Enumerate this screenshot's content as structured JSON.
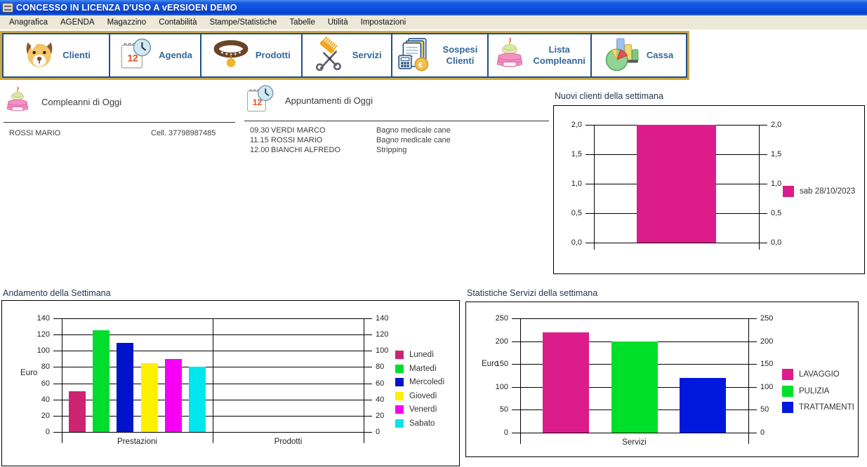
{
  "window": {
    "title": "CONCESSO IN LICENZA D'USO A vERSIOEN DEMO"
  },
  "menu": {
    "items": [
      "Anagrafica",
      "AGENDA",
      "Magazzino",
      "Contabilità",
      "Stampe/Statistiche",
      "Tabelle",
      "Utilità",
      "Impostazioni"
    ]
  },
  "toolbar": {
    "buttons": [
      {
        "label": "Clienti",
        "icon": "dog-icon"
      },
      {
        "label": "Agenda",
        "icon": "calendar-clock-icon"
      },
      {
        "label": "Prodotti",
        "icon": "dog-collar-icon"
      },
      {
        "label": "Servizi",
        "icon": "comb-scissors-icon"
      },
      {
        "label": "Sospesi Clienti",
        "icon": "documents-calculator-euro-icon"
      },
      {
        "label": "Lista Compleanni",
        "icon": "birthday-cake-icon"
      },
      {
        "label": "Cassa",
        "icon": "pie-chart-icon"
      }
    ]
  },
  "birthdays": {
    "title": "Compleanni di Oggi",
    "rows": [
      {
        "name": "ROSSI MARIO",
        "phone": "Cell. 37798987485"
      }
    ]
  },
  "appointments": {
    "title": "Appuntamenti di Oggi",
    "rows": [
      {
        "time": "09.30",
        "name": "VERDI MARCO",
        "service": "Bagno medicale cane"
      },
      {
        "time": "11.15",
        "name": "ROSSI MARIO",
        "service": "Bagno medicale cane"
      },
      {
        "time": "12.00",
        "name": "BIANCHI ALFREDO",
        "service": "Stripping"
      }
    ]
  },
  "chart_data": [
    {
      "type": "bar",
      "title": "Nuovi clienti della settimana",
      "ylabel": "",
      "xlabel": "",
      "ylim": [
        0,
        2.0
      ],
      "yticks": [
        0.0,
        0.5,
        1.0,
        1.5,
        2.0
      ],
      "ytick_labels": [
        "0,0",
        "0,5",
        "1,0",
        "1,5",
        "2,0"
      ],
      "categories": [
        ""
      ],
      "series": [
        {
          "name": "sab 28/10/2023",
          "color": "#DD1C8C",
          "values": [
            2.0
          ]
        }
      ],
      "grid": true,
      "legend_position": "right"
    },
    {
      "type": "bar",
      "title": "Andamento della Settimana",
      "ylabel": "Euro",
      "xlabel": "",
      "ylim": [
        0,
        140
      ],
      "yticks": [
        0,
        20,
        40,
        60,
        80,
        100,
        120,
        140
      ],
      "ytick_labels": [
        "0",
        "20",
        "40",
        "60",
        "80",
        "100",
        "120",
        "140"
      ],
      "categories": [
        "Prestazioni",
        "Prodotti"
      ],
      "series": [
        {
          "name": "Lunedì",
          "color": "#CC2472",
          "values": [
            50,
            0
          ]
        },
        {
          "name": "Martedì",
          "color": "#00DD2C",
          "values": [
            125,
            0
          ]
        },
        {
          "name": "Mercoledì",
          "color": "#0014CC",
          "values": [
            110,
            0
          ]
        },
        {
          "name": "Giovedì",
          "color": "#FFF000",
          "values": [
            85,
            0
          ]
        },
        {
          "name": "Venerdì",
          "color": "#F500F5",
          "values": [
            90,
            0
          ]
        },
        {
          "name": "Sabato",
          "color": "#00E6EE",
          "values": [
            80,
            0
          ]
        }
      ],
      "grid": true,
      "legend_position": "right"
    },
    {
      "type": "bar",
      "title": "Statistiche Servizi della settimana",
      "ylabel": "Euro",
      "xlabel": "",
      "ylim": [
        0,
        250
      ],
      "yticks": [
        0,
        50,
        100,
        150,
        200,
        250
      ],
      "ytick_labels": [
        "0",
        "50",
        "100",
        "150",
        "200",
        "250"
      ],
      "categories": [
        "Servizi"
      ],
      "series": [
        {
          "name": "LAVAGGIO",
          "color": "#DD1C8C",
          "values": [
            220
          ]
        },
        {
          "name": "PULIZIA",
          "color": "#00E02A",
          "values": [
            200
          ]
        },
        {
          "name": "TRATTAMENTI",
          "color": "#0018DD",
          "values": [
            120
          ]
        }
      ],
      "grid": true,
      "legend_position": "right"
    }
  ]
}
